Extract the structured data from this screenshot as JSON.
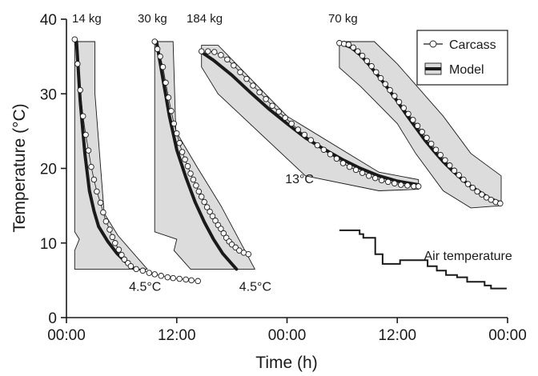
{
  "chart_data": {
    "type": "line",
    "xlabel": "Time (h)",
    "ylabel": "Temperature (°C)",
    "xlim": [
      0,
      48
    ],
    "ylim": [
      0,
      40
    ],
    "xticks": [
      0,
      12,
      24,
      36,
      48
    ],
    "xtick_labels": [
      "00:00",
      "12:00",
      "00:00",
      "12:00",
      "00:00"
    ],
    "yticks": [
      0,
      10,
      20,
      30,
      40
    ],
    "ytick_labels": [
      "0",
      "10",
      "20",
      "30",
      "40"
    ],
    "grid": false,
    "legend": {
      "position": "top-right",
      "entries": [
        {
          "label": "Carcass",
          "style": "open-circle-line"
        },
        {
          "label": "Model",
          "style": "band-with-thick-line"
        }
      ]
    },
    "groups": [
      {
        "label": "14 kg",
        "band": [
          [
            0.9,
            37
          ],
          [
            3.1,
            37
          ],
          [
            3.1,
            30
          ],
          [
            4.1,
            14
          ],
          [
            5.6,
            11
          ],
          [
            8.8,
            6.5
          ],
          [
            0.9,
            6.5
          ],
          [
            0.9,
            9
          ],
          [
            1.4,
            10.5
          ],
          [
            0.9,
            11.5
          ]
        ],
        "model": [
          [
            1.1,
            37
          ],
          [
            1.5,
            29
          ],
          [
            2,
            22
          ],
          [
            2.5,
            17
          ],
          [
            3,
            14.3
          ],
          [
            3.5,
            12.2
          ],
          [
            4.5,
            10.2
          ],
          [
            5.5,
            8.6
          ],
          [
            6.5,
            7.4
          ],
          [
            7.3,
            6.6
          ]
        ],
        "carcass": [
          [
            0.9,
            37.3
          ],
          [
            1.2,
            34
          ],
          [
            1.5,
            30.5
          ],
          [
            1.8,
            27
          ],
          [
            2.1,
            24.5
          ],
          [
            2.4,
            22.4
          ],
          [
            2.7,
            20.2
          ],
          [
            3,
            18.5
          ],
          [
            3.3,
            16.9
          ],
          [
            3.7,
            15.4
          ],
          [
            4,
            14.1
          ],
          [
            4.3,
            12.9
          ],
          [
            4.7,
            11.8
          ],
          [
            5,
            10.8
          ],
          [
            5.3,
            10
          ],
          [
            5.7,
            9.1
          ],
          [
            6,
            8.4
          ],
          [
            6.3,
            7.8
          ],
          [
            6.7,
            7.3
          ],
          [
            7,
            6.9
          ],
          [
            7.6,
            6.5
          ],
          [
            8.3,
            6.3
          ],
          [
            9,
            6
          ],
          [
            9.6,
            5.8
          ],
          [
            10.3,
            5.6
          ],
          [
            11,
            5.4
          ],
          [
            11.6,
            5.3
          ],
          [
            12.3,
            5.2
          ],
          [
            13,
            5.1
          ],
          [
            13.6,
            5
          ],
          [
            14.3,
            4.9
          ]
        ]
      },
      {
        "label": "30 kg",
        "band": [
          [
            9.6,
            37
          ],
          [
            11.6,
            37
          ],
          [
            11.9,
            25
          ],
          [
            14.3,
            20
          ],
          [
            16.8,
            15
          ],
          [
            20.5,
            6.5
          ],
          [
            13.5,
            6.5
          ],
          [
            11.7,
            9
          ],
          [
            12,
            10.5
          ],
          [
            9.6,
            11.5
          ]
        ],
        "model": [
          [
            9.8,
            37
          ],
          [
            10.5,
            32
          ],
          [
            11.2,
            27
          ],
          [
            12,
            22.5
          ],
          [
            13,
            18.8
          ],
          [
            14,
            15.5
          ],
          [
            15,
            12.8
          ],
          [
            16,
            10.5
          ],
          [
            17,
            8.6
          ],
          [
            18,
            7.2
          ],
          [
            18.5,
            6.5
          ]
        ],
        "carcass": [
          [
            9.6,
            37
          ],
          [
            9.9,
            36
          ],
          [
            10.2,
            35
          ],
          [
            10.5,
            33.6
          ],
          [
            10.8,
            31.5
          ],
          [
            11.1,
            29.5
          ],
          [
            11.4,
            27.7
          ],
          [
            11.7,
            26
          ],
          [
            12,
            24.7
          ],
          [
            12.3,
            23.4
          ],
          [
            12.6,
            22.2
          ],
          [
            12.9,
            21.2
          ],
          [
            13.2,
            20.3
          ],
          [
            13.5,
            19.3
          ],
          [
            13.8,
            18.5
          ],
          [
            14.1,
            17.7
          ],
          [
            14.4,
            16.9
          ],
          [
            14.7,
            16.2
          ],
          [
            15,
            15.5
          ],
          [
            15.3,
            14.8
          ],
          [
            15.6,
            14.2
          ],
          [
            15.9,
            13.6
          ],
          [
            16.2,
            13
          ],
          [
            16.5,
            12.4
          ],
          [
            16.8,
            11.9
          ],
          [
            17.1,
            11.3
          ],
          [
            17.4,
            10.7
          ],
          [
            17.7,
            10.2
          ],
          [
            18,
            9.8
          ],
          [
            18.4,
            9.4
          ],
          [
            18.8,
            9
          ],
          [
            19.3,
            8.7
          ],
          [
            19.8,
            8.5
          ]
        ]
      },
      {
        "label": "184 kg",
        "band": [
          [
            14.7,
            36.5
          ],
          [
            16.5,
            36.5
          ],
          [
            24,
            27
          ],
          [
            32,
            21
          ],
          [
            34,
            19.5
          ],
          [
            38.3,
            18.5
          ],
          [
            38.3,
            17.2
          ],
          [
            34,
            17
          ],
          [
            26,
            19
          ],
          [
            16.5,
            30
          ],
          [
            14.7,
            33.6
          ]
        ],
        "model": [
          [
            14.8,
            35.5
          ],
          [
            16,
            34.5
          ],
          [
            18,
            32.5
          ],
          [
            20,
            30.2
          ],
          [
            22,
            28
          ],
          [
            24,
            26
          ],
          [
            26,
            24.1
          ],
          [
            28,
            22.6
          ],
          [
            30,
            21.2
          ],
          [
            32,
            20
          ],
          [
            34,
            19
          ],
          [
            36,
            18.3
          ],
          [
            38.3,
            17.8
          ]
        ],
        "carcass": [
          [
            14.7,
            35.7
          ],
          [
            15.4,
            35.7
          ],
          [
            16.1,
            35.6
          ],
          [
            16.8,
            35.2
          ],
          [
            17.5,
            34.6
          ],
          [
            18.2,
            33.8
          ],
          [
            18.9,
            32.9
          ],
          [
            19.6,
            32
          ],
          [
            20.3,
            31.1
          ],
          [
            21,
            30.2
          ],
          [
            21.7,
            29.3
          ],
          [
            22.4,
            28.4
          ],
          [
            23.1,
            27.6
          ],
          [
            23.8,
            26.8
          ],
          [
            24.5,
            26
          ],
          [
            25.2,
            25.2
          ],
          [
            25.9,
            24.5
          ],
          [
            26.6,
            23.8
          ],
          [
            27.3,
            23.1
          ],
          [
            28,
            22.5
          ],
          [
            28.7,
            21.9
          ],
          [
            29.4,
            21.3
          ],
          [
            30.1,
            20.7
          ],
          [
            30.8,
            20.2
          ],
          [
            31.5,
            19.8
          ],
          [
            32.2,
            19.4
          ],
          [
            32.9,
            19
          ],
          [
            33.6,
            18.7
          ],
          [
            34.3,
            18.4
          ],
          [
            35,
            18.2
          ],
          [
            35.7,
            18
          ],
          [
            36.4,
            17.8
          ],
          [
            37.1,
            17.7
          ],
          [
            37.8,
            17.6
          ],
          [
            38.3,
            17.6
          ]
        ]
      },
      {
        "label": "70 kg",
        "band": [
          [
            29.7,
            37
          ],
          [
            33.5,
            37
          ],
          [
            36,
            34
          ],
          [
            41,
            27
          ],
          [
            44,
            22
          ],
          [
            47.3,
            19
          ],
          [
            47.3,
            15
          ],
          [
            44,
            14.7
          ],
          [
            41,
            17
          ],
          [
            38,
            22
          ],
          [
            36,
            26
          ],
          [
            32,
            31
          ],
          [
            29.7,
            33.5
          ]
        ],
        "model": [
          [
            29.8,
            36.8
          ],
          [
            31,
            36.2
          ],
          [
            32,
            35.2
          ],
          [
            33,
            33.8
          ],
          [
            34,
            32.3
          ],
          [
            35,
            30.7
          ],
          [
            36,
            29
          ],
          [
            37,
            27.2
          ],
          [
            38,
            25.5
          ],
          [
            39,
            23.8
          ],
          [
            40,
            22.3
          ],
          [
            41,
            20.9
          ],
          [
            42,
            19.7
          ],
          [
            43,
            18.6
          ],
          [
            44,
            17.6
          ],
          [
            45,
            16.8
          ],
          [
            46,
            16
          ],
          [
            47,
            15.5
          ]
        ],
        "carcass": [
          [
            29.7,
            36.8
          ],
          [
            30.2,
            36.7
          ],
          [
            30.7,
            36.6
          ],
          [
            31.2,
            36.2
          ],
          [
            31.7,
            35.7
          ],
          [
            32.2,
            35.1
          ],
          [
            32.7,
            34.4
          ],
          [
            33.2,
            33.7
          ],
          [
            33.7,
            32.9
          ],
          [
            34.2,
            32.1
          ],
          [
            34.7,
            31.3
          ],
          [
            35.2,
            30.5
          ],
          [
            35.7,
            29.7
          ],
          [
            36.2,
            28.9
          ],
          [
            36.7,
            28.1
          ],
          [
            37.2,
            27.3
          ],
          [
            37.7,
            26.5
          ],
          [
            38.2,
            25.7
          ],
          [
            38.7,
            24.9
          ],
          [
            39.2,
            24.1
          ],
          [
            39.7,
            23.3
          ],
          [
            40.2,
            22.5
          ],
          [
            40.7,
            21.8
          ],
          [
            41.2,
            21.1
          ],
          [
            41.7,
            20.4
          ],
          [
            42.2,
            19.7
          ],
          [
            42.7,
            19.1
          ],
          [
            43.2,
            18.5
          ],
          [
            43.7,
            17.9
          ],
          [
            44.2,
            17.4
          ],
          [
            44.7,
            16.9
          ],
          [
            45.2,
            16.5
          ],
          [
            45.7,
            16.1
          ],
          [
            46.2,
            15.8
          ],
          [
            46.7,
            15.5
          ],
          [
            47.2,
            15.3
          ]
        ]
      }
    ],
    "air_temperature": {
      "label": "Air temperature",
      "points": [
        [
          29.7,
          11.7
        ],
        [
          31.9,
          11.7
        ],
        [
          31.9,
          11.2
        ],
        [
          32.3,
          11.2
        ],
        [
          32.3,
          10.7
        ],
        [
          33.6,
          10.7
        ],
        [
          33.6,
          8.5
        ],
        [
          34.4,
          8.5
        ],
        [
          34.4,
          7.2
        ],
        [
          36.3,
          7.2
        ],
        [
          36.3,
          7.7
        ],
        [
          38.1,
          7.7
        ],
        [
          38.1,
          7.7
        ],
        [
          39.3,
          7.7
        ],
        [
          39.3,
          6.9
        ],
        [
          40.3,
          6.9
        ],
        [
          40.3,
          6.3
        ],
        [
          41.3,
          6.3
        ],
        [
          41.3,
          5.7
        ],
        [
          42.5,
          5.7
        ],
        [
          42.5,
          5.4
        ],
        [
          43.6,
          5.4
        ],
        [
          43.6,
          4.8
        ],
        [
          45.5,
          4.8
        ],
        [
          45.5,
          4.3
        ],
        [
          46.2,
          4.3
        ],
        [
          46.2,
          3.9
        ],
        [
          47.9,
          3.9
        ]
      ]
    },
    "annotations": [
      {
        "text": "4.5°C",
        "x": 6.8,
        "y": 3.6
      },
      {
        "text": "4.5°C",
        "x": 18.8,
        "y": 3.6
      },
      {
        "text": "13°C",
        "x": 23.8,
        "y": 18.0
      },
      {
        "text": "Air temperature",
        "x": 38.9,
        "y": 7.7
      }
    ]
  }
}
